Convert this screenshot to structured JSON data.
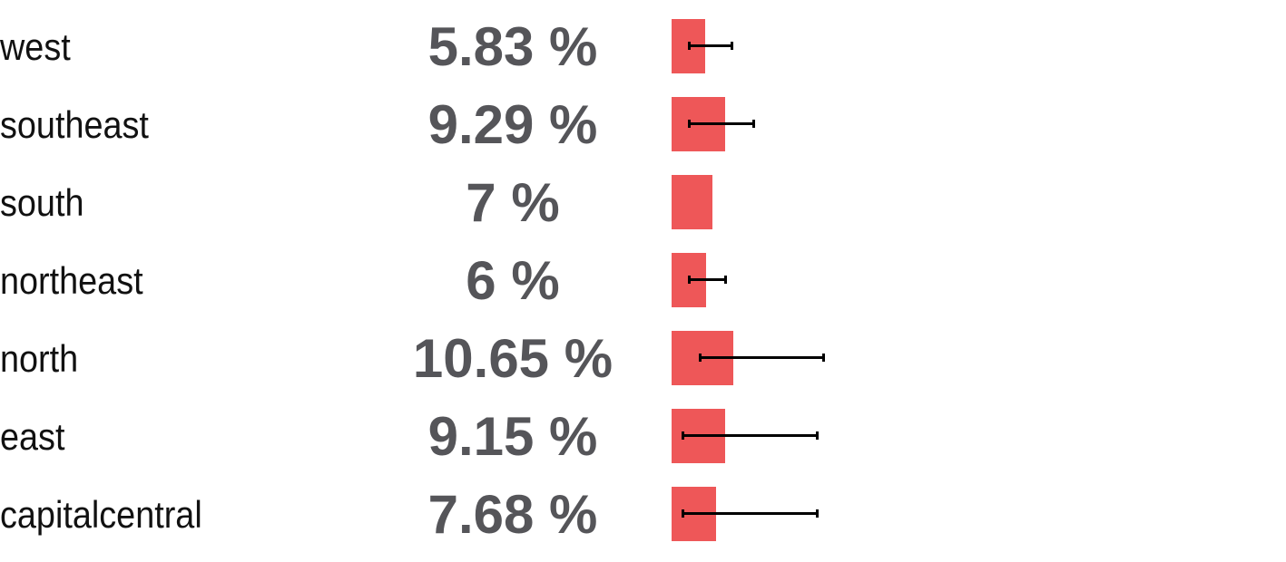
{
  "chart_data": {
    "type": "bar",
    "orientation": "horizontal",
    "categories": [
      "west",
      "southeast",
      "south",
      "northeast",
      "north",
      "east",
      "capitalcentral"
    ],
    "values": [
      5.83,
      9.29,
      7,
      6,
      10.65,
      9.15,
      7.68
    ],
    "value_labels": [
      "5.83 %",
      "9.29 %",
      "7 %",
      "6 %",
      "10.65 %",
      "9.15 %",
      "7.68 %"
    ],
    "error_bars": [
      {
        "low": 2.9,
        "high": 10.3
      },
      {
        "low": 2.9,
        "high": 14.0
      },
      null,
      {
        "low": 2.9,
        "high": 9.2
      },
      {
        "low": 4.9,
        "high": 26.1
      },
      {
        "low": 1.9,
        "high": 25.0
      },
      {
        "low": 1.9,
        "high": 25.0
      }
    ],
    "xlim": [
      0,
      100
    ],
    "colors": {
      "bar": "#ee5758",
      "error": "#000000",
      "value_label": "#555559",
      "category_label": "#111111"
    },
    "grid": false,
    "legend": "none"
  }
}
